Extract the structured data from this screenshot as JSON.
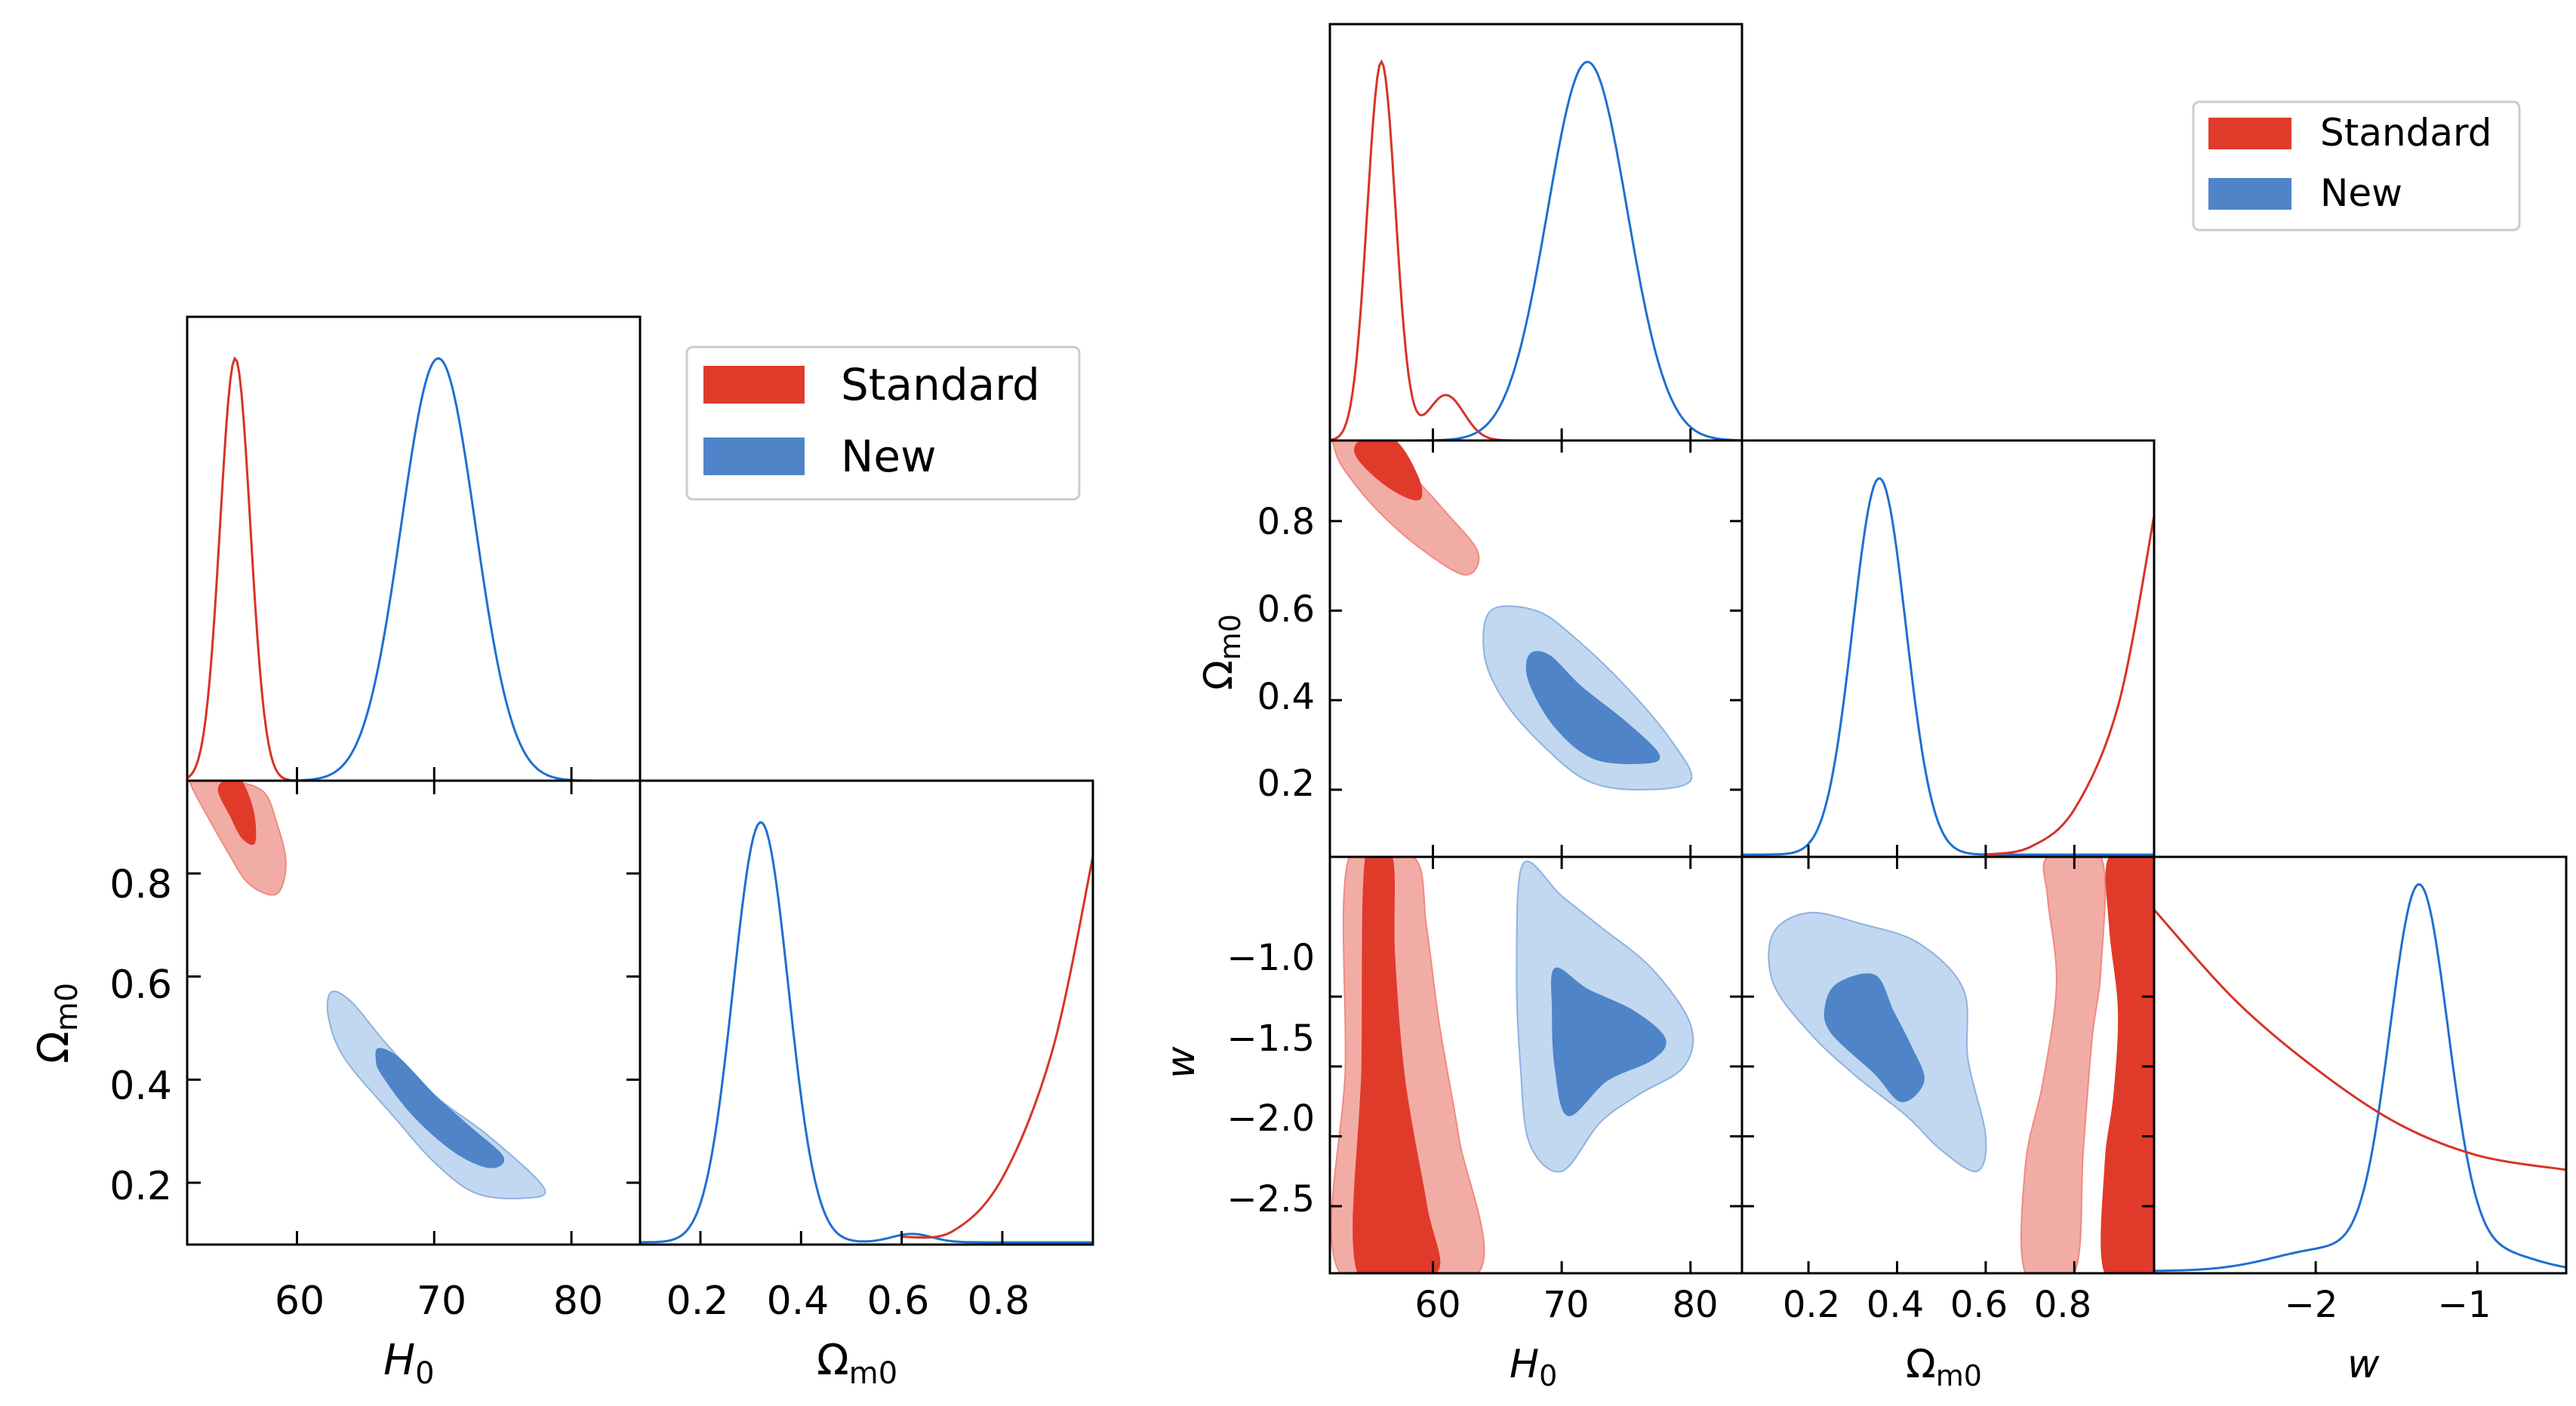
{
  "colors": {
    "standard_dark": "#E03A2B",
    "standard_light": "#F2ACA6",
    "standard_line": "#D63426",
    "new_dark": "#4F84C9",
    "new_light": "#C2D7F0",
    "new_line": "#1F6FD1",
    "axis": "#000000",
    "legend_border": "#CCCCCC"
  },
  "legend": {
    "entries": [
      {
        "label": "Standard",
        "series": "standard"
      },
      {
        "label": "New",
        "series": "new"
      }
    ]
  },
  "chart_data": [
    {
      "type": "triangle",
      "parameters": [
        "H0",
        "Omega_m0"
      ],
      "xlabel_H0": "H",
      "xlabel_H0_sub": "0",
      "xlabel_Om": "Ω",
      "xlabel_Om_sub": "m0",
      "ylabel_Om": "Ω",
      "ylabel_Om_sub": "m0",
      "xlim_H0": [
        52,
        85
      ],
      "xlim_Om": [
        0.08,
        0.98
      ],
      "ylim_Om": [
        0.08,
        0.98
      ],
      "xticks_H0": [
        "60",
        "70",
        "80"
      ],
      "xticks_Om": [
        "0.2",
        "0.4",
        "0.6",
        "0.8"
      ],
      "yticks_Om": [
        "0.2",
        "0.4",
        "0.6",
        "0.8"
      ],
      "legend_position": "top-right",
      "series": [
        {
          "name": "Standard",
          "H0_peak": 55.5,
          "H0_sigma": 1.1,
          "Om_1d": [
            [
              0.6,
              0.005
            ],
            [
              0.7,
              0.01
            ],
            [
              0.8,
              0.06
            ],
            [
              0.9,
              0.18
            ],
            [
              0.98,
              0.36
            ]
          ],
          "contour_95": [
            [
              52.5,
              0.98
            ],
            [
              55,
              0.98
            ],
            [
              57.5,
              0.96
            ],
            [
              58.5,
              0.9
            ],
            [
              59.2,
              0.82
            ],
            [
              58.5,
              0.76
            ],
            [
              56.5,
              0.78
            ],
            [
              55,
              0.84
            ],
            [
              53.5,
              0.91
            ],
            [
              52.3,
              0.97
            ]
          ],
          "contour_68": [
            [
              54.8,
              0.98
            ],
            [
              55.9,
              0.98
            ],
            [
              56.8,
              0.92
            ],
            [
              56.9,
              0.86
            ],
            [
              56.0,
              0.87
            ],
            [
              55.2,
              0.91
            ],
            [
              54.3,
              0.96
            ]
          ]
        },
        {
          "name": "New",
          "H0_peak": 70.3,
          "H0_sigma": 2.7,
          "Om_peak": 0.32,
          "Om_sigma": 0.055,
          "contour_95": [
            [
              62.5,
              0.57
            ],
            [
              64,
              0.55
            ],
            [
              66.5,
              0.47
            ],
            [
              70,
              0.37
            ],
            [
              74,
              0.29
            ],
            [
              78,
              0.19
            ],
            [
              76.5,
              0.17
            ],
            [
              73,
              0.18
            ],
            [
              70,
              0.24
            ],
            [
              67,
              0.33
            ],
            [
              63.5,
              0.44
            ],
            [
              62.3,
              0.52
            ]
          ],
          "contour_68": [
            [
              66,
              0.46
            ],
            [
              67.5,
              0.44
            ],
            [
              70,
              0.37
            ],
            [
              72.5,
              0.31
            ],
            [
              75,
              0.25
            ],
            [
              74,
              0.23
            ],
            [
              71.5,
              0.26
            ],
            [
              68.5,
              0.33
            ],
            [
              66.2,
              0.41
            ],
            [
              65.8,
              0.44
            ]
          ]
        }
      ]
    },
    {
      "type": "triangle",
      "parameters": [
        "H0",
        "Omega_m0",
        "w"
      ],
      "xlabel_H0": "H",
      "xlabel_H0_sub": "0",
      "xlabel_Om": "Ω",
      "xlabel_Om_sub": "m0",
      "xlabel_w": "w",
      "ylabel_Om": "Ω",
      "ylabel_Om_sub": "m0",
      "ylabel_w": "w",
      "xlim_H0": [
        52,
        84
      ],
      "xlim_Om": [
        0.05,
        0.98
      ],
      "xlim_w": [
        -3.0,
        -0.45
      ],
      "ylim_Om": [
        0.05,
        0.98
      ],
      "ylim_w": [
        -2.98,
        -0.0
      ],
      "xticks_H0": [
        "60",
        "70",
        "80"
      ],
      "xticks_Om": [
        "0.2",
        "0.4",
        "0.6",
        "0.8"
      ],
      "xticks_w": [
        "−2",
        "−1"
      ],
      "yticks_Om": [
        "0.2",
        "0.4",
        "0.6",
        "0.8"
      ],
      "yticks_w": [
        "−1.0",
        "−1.5",
        "−2.0",
        "−2.5"
      ],
      "legend_position": "top-right",
      "series": [
        {
          "name": "Standard",
          "H0_peak": 56.0,
          "H0_sigma": 1.1,
          "Om_1d": [
            [
              0.6,
              0.0
            ],
            [
              0.7,
              0.02
            ],
            [
              0.8,
              0.12
            ],
            [
              0.9,
              0.4
            ],
            [
              0.98,
              0.9
            ]
          ],
          "w_1d": [
            [
              -3.0,
              1.0
            ],
            [
              -2.5,
              0.75
            ],
            [
              -2.0,
              0.56
            ],
            [
              -1.5,
              0.41
            ],
            [
              -1.0,
              0.32
            ],
            [
              -0.45,
              0.28
            ]
          ],
          "contour_H0_Om_95": [
            [
              52.5,
              0.98
            ],
            [
              56,
              0.98
            ],
            [
              58.5,
              0.9
            ],
            [
              61,
              0.82
            ],
            [
              63.5,
              0.73
            ],
            [
              62.5,
              0.68
            ],
            [
              59,
              0.74
            ],
            [
              55.5,
              0.83
            ],
            [
              53,
              0.92
            ],
            [
              52.3,
              0.97
            ]
          ],
          "contour_H0_Om_68": [
            [
              54.5,
              0.98
            ],
            [
              57,
              0.98
            ],
            [
              58.8,
              0.9
            ],
            [
              59,
              0.85
            ],
            [
              57.5,
              0.86
            ],
            [
              55.5,
              0.9
            ],
            [
              54,
              0.95
            ]
          ],
          "contour_H0_w_95": [
            [
              53.5,
              0.0
            ],
            [
              58.5,
              0.0
            ],
            [
              59.5,
              -0.5
            ],
            [
              60.5,
              -1.2
            ],
            [
              62,
              -2.0
            ],
            [
              63.5,
              -2.98
            ],
            [
              52.8,
              -2.98
            ],
            [
              53.2,
              -1.5
            ]
          ],
          "contour_H0_w_68": [
            [
              54.8,
              0.0
            ],
            [
              56.8,
              0.0
            ],
            [
              57.0,
              -0.7
            ],
            [
              57.8,
              -1.6
            ],
            [
              59.5,
              -2.5
            ],
            [
              60.2,
              -2.98
            ],
            [
              54.2,
              -2.98
            ],
            [
              54.5,
              -1.5
            ]
          ],
          "contour_Om_w_95": [
            [
              0.74,
              0.0
            ],
            [
              0.86,
              0.0
            ],
            [
              0.86,
              -0.8
            ],
            [
              0.84,
              -1.3
            ],
            [
              0.82,
              -2.1
            ],
            [
              0.8,
              -2.98
            ],
            [
              0.69,
              -2.98
            ],
            [
              0.69,
              -2.2
            ],
            [
              0.73,
              -1.6
            ],
            [
              0.76,
              -0.9
            ],
            [
              0.74,
              -0.3
            ]
          ],
          "contour_Om_w_68": [
            [
              0.88,
              0.0
            ],
            [
              0.98,
              0.0
            ],
            [
              0.98,
              -2.98
            ],
            [
              0.87,
              -2.98
            ],
            [
              0.87,
              -2.2
            ],
            [
              0.89,
              -1.7
            ],
            [
              0.9,
              -1.1
            ],
            [
              0.88,
              -0.5
            ]
          ]
        },
        {
          "name": "New",
          "H0_peak": 72.0,
          "H0_sigma": 3.1,
          "Om_peak": 0.36,
          "Om_sigma": 0.06,
          "w_peak": -1.36,
          "w_sigma": 0.18,
          "contour_H0_Om_95": [
            [
              64.5,
              0.6
            ],
            [
              68,
              0.6
            ],
            [
              71,
              0.54
            ],
            [
              75,
              0.43
            ],
            [
              78.5,
              0.31
            ],
            [
              80,
              0.22
            ],
            [
              76,
              0.2
            ],
            [
              72,
              0.22
            ],
            [
              68.5,
              0.3
            ],
            [
              65.5,
              0.4
            ],
            [
              64,
              0.5
            ]
          ],
          "contour_H0_Om_68": [
            [
              67.5,
              0.5
            ],
            [
              69,
              0.5
            ],
            [
              71.5,
              0.43
            ],
            [
              75,
              0.35
            ],
            [
              77.5,
              0.28
            ],
            [
              76.5,
              0.26
            ],
            [
              72.5,
              0.27
            ],
            [
              69.5,
              0.34
            ],
            [
              67.5,
              0.44
            ]
          ],
          "contour_H0_w_95": [
            [
              67,
              -0.05
            ],
            [
              70,
              -0.28
            ],
            [
              73,
              -0.5
            ],
            [
              77,
              -0.8
            ],
            [
              80,
              -1.2
            ],
            [
              79.5,
              -1.5
            ],
            [
              76,
              -1.7
            ],
            [
              73,
              -1.9
            ],
            [
              70,
              -2.25
            ],
            [
              67.5,
              -2.05
            ],
            [
              66.8,
              -1.5
            ],
            [
              66.5,
              -0.8
            ]
          ],
          "contour_H0_w_68": [
            [
              69.5,
              -0.8
            ],
            [
              72,
              -0.95
            ],
            [
              75.5,
              -1.1
            ],
            [
              78,
              -1.3
            ],
            [
              77,
              -1.45
            ],
            [
              73.5,
              -1.6
            ],
            [
              70.5,
              -1.85
            ],
            [
              69.5,
              -1.5
            ],
            [
              69.3,
              -1.1
            ]
          ],
          "contour_Om_w_95": [
            [
              0.12,
              -0.55
            ],
            [
              0.2,
              -0.4
            ],
            [
              0.32,
              -0.48
            ],
            [
              0.45,
              -0.62
            ],
            [
              0.55,
              -0.95
            ],
            [
              0.56,
              -1.45
            ],
            [
              0.6,
              -2.0
            ],
            [
              0.58,
              -2.25
            ],
            [
              0.5,
              -2.1
            ],
            [
              0.42,
              -1.85
            ],
            [
              0.3,
              -1.55
            ],
            [
              0.2,
              -1.25
            ],
            [
              0.12,
              -0.9
            ]
          ],
          "contour_Om_w_68": [
            [
              0.27,
              -0.9
            ],
            [
              0.35,
              -0.85
            ],
            [
              0.39,
              -1.1
            ],
            [
              0.43,
              -1.35
            ],
            [
              0.46,
              -1.6
            ],
            [
              0.41,
              -1.75
            ],
            [
              0.35,
              -1.55
            ],
            [
              0.25,
              -1.25
            ],
            [
              0.24,
              -1.05
            ]
          ]
        }
      ]
    }
  ]
}
